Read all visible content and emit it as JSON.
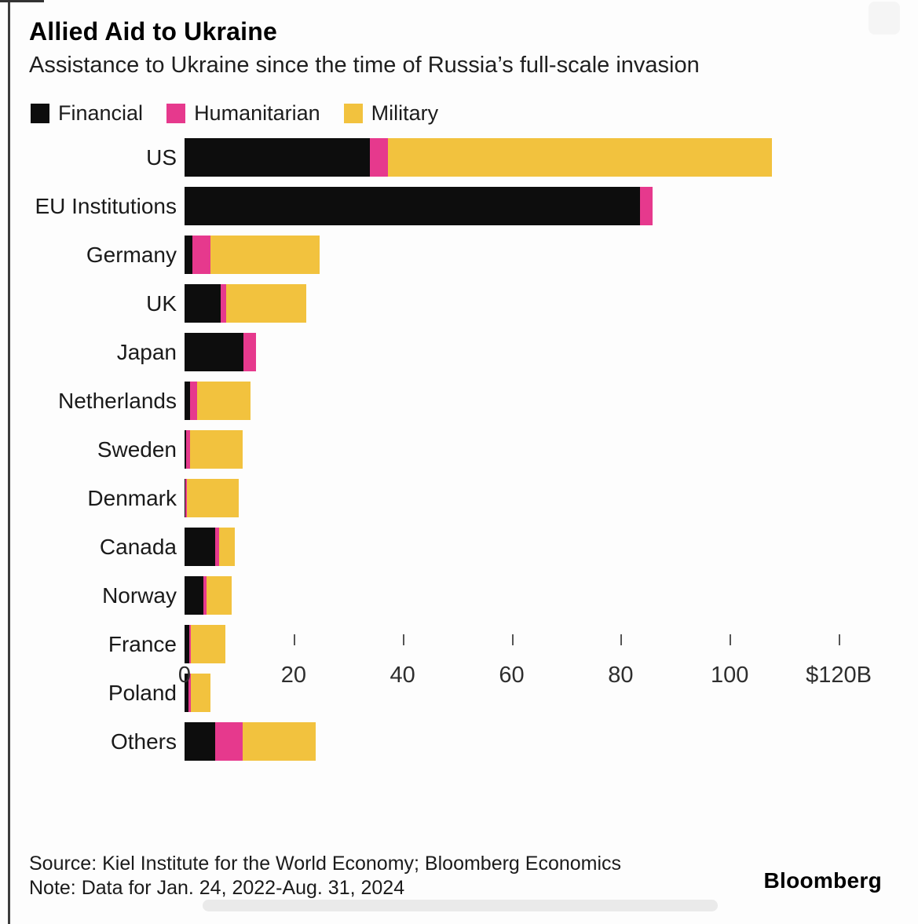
{
  "header": {
    "title": "Allied Aid to Ukraine",
    "subtitle": "Assistance to Ukraine since the time of Russia’s full-scale invasion"
  },
  "colors": {
    "financial": "#0d0d0d",
    "humanitarian": "#e6398d",
    "military": "#f2c23e",
    "background": "#fdfdfd"
  },
  "legend": [
    {
      "label": "Financial",
      "color": "#0d0d0d"
    },
    {
      "label": "Humanitarian",
      "color": "#e6398d"
    },
    {
      "label": "Military",
      "color": "#f2c23e"
    }
  ],
  "chart_data": {
    "type": "bar",
    "orientation": "horizontal",
    "stacked": true,
    "unit": "USD billions",
    "title": "Allied Aid to Ukraine",
    "xlabel": "",
    "ylabel": "",
    "categories": [
      "US",
      "EU Institutions",
      "Germany",
      "UK",
      "Japan",
      "Netherlands",
      "Sweden",
      "Denmark",
      "Canada",
      "Norway",
      "France",
      "Poland",
      "Others"
    ],
    "series": [
      {
        "name": "Financial",
        "color": "#0d0d0d",
        "values": [
          34.0,
          83.5,
          1.4,
          6.6,
          10.8,
          1.0,
          0.3,
          0.2,
          5.6,
          3.5,
          0.8,
          0.7,
          5.6
        ]
      },
      {
        "name": "Humanitarian",
        "color": "#e6398d",
        "values": [
          3.3,
          2.3,
          3.4,
          1.0,
          2.3,
          1.3,
          0.7,
          0.3,
          0.7,
          0.6,
          0.4,
          0.4,
          5.0
        ]
      },
      {
        "name": "Military",
        "color": "#f2c23e",
        "values": [
          70.5,
          0,
          20.0,
          14.7,
          0,
          9.8,
          9.7,
          9.5,
          2.9,
          4.5,
          6.3,
          3.7,
          13.5
        ]
      }
    ],
    "totals": [
      107.8,
      85.8,
      24.8,
      22.3,
      13.1,
      12.1,
      10.7,
      10.0,
      9.2,
      8.6,
      7.5,
      4.8,
      24.1
    ],
    "axis": {
      "min": 0,
      "max": 120,
      "ticks": [
        0,
        20,
        40,
        60,
        80,
        100,
        120
      ],
      "tick_labels": [
        "0",
        "20",
        "40",
        "60",
        "80",
        "100",
        "$120B"
      ],
      "grid": false,
      "legend_position": "top"
    }
  },
  "footer": {
    "source": "Source: Kiel Institute for the World Economy; Bloomberg Economics",
    "note": "Note: Data for Jan. 24, 2022-Aug. 31, 2024",
    "brand": "Bloomberg"
  }
}
